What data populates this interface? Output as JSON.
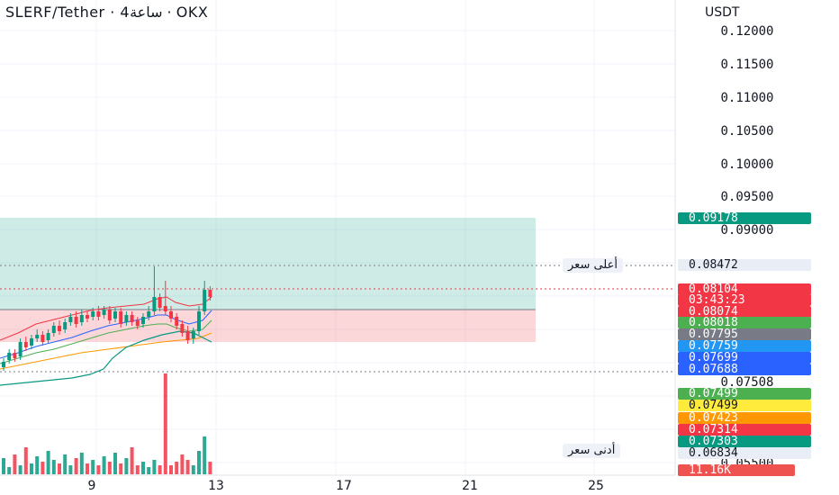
{
  "header": {
    "title": "SLERF/Tether · 4ساعة · OKX"
  },
  "price_axis": {
    "currency": "USDT",
    "labels": [
      "0.12000",
      "0.11500",
      "0.11000",
      "0.10500",
      "0.10000",
      "0.09500",
      "0.09000",
      "0.07508",
      "0.06834",
      "0.05500"
    ]
  },
  "markers": {
    "high_label": "أعلى سعر",
    "low_label": "أدنى سعر"
  },
  "price_tags": [
    {
      "value": "0.09178",
      "color": "#089981"
    },
    {
      "value": "0.08472",
      "color": "#e8edf6"
    },
    {
      "value": "0.08104",
      "color": "#f23645"
    },
    {
      "value": "03:43:23",
      "color": "#f23645"
    },
    {
      "value": "0.08074",
      "color": "#f23645"
    },
    {
      "value": "0.08018",
      "color": "#4caf50"
    },
    {
      "value": "0.07795",
      "color": "#787b86"
    },
    {
      "value": "0.07759",
      "color": "#2196f3"
    },
    {
      "value": "0.07699",
      "color": "#2962ff"
    },
    {
      "value": "0.07688",
      "color": "#2962ff"
    },
    {
      "value": "0.07499",
      "color": "#4caf50"
    },
    {
      "value": "0.07499",
      "color": "#ffeb3b"
    },
    {
      "value": "0.07423",
      "color": "#ff9800"
    },
    {
      "value": "0.07314",
      "color": "#f23645"
    },
    {
      "value": "0.07303",
      "color": "#089981"
    },
    {
      "value": "0.06834",
      "color": "#e8edf6"
    },
    {
      "value": "11.16K",
      "color": "#ef5350"
    }
  ],
  "time_axis": {
    "labels": [
      "9",
      "13",
      "17",
      "21",
      "25"
    ]
  },
  "colors": {
    "up": "#089981",
    "down": "#f23645",
    "grid": "#f0f3fa"
  }
}
